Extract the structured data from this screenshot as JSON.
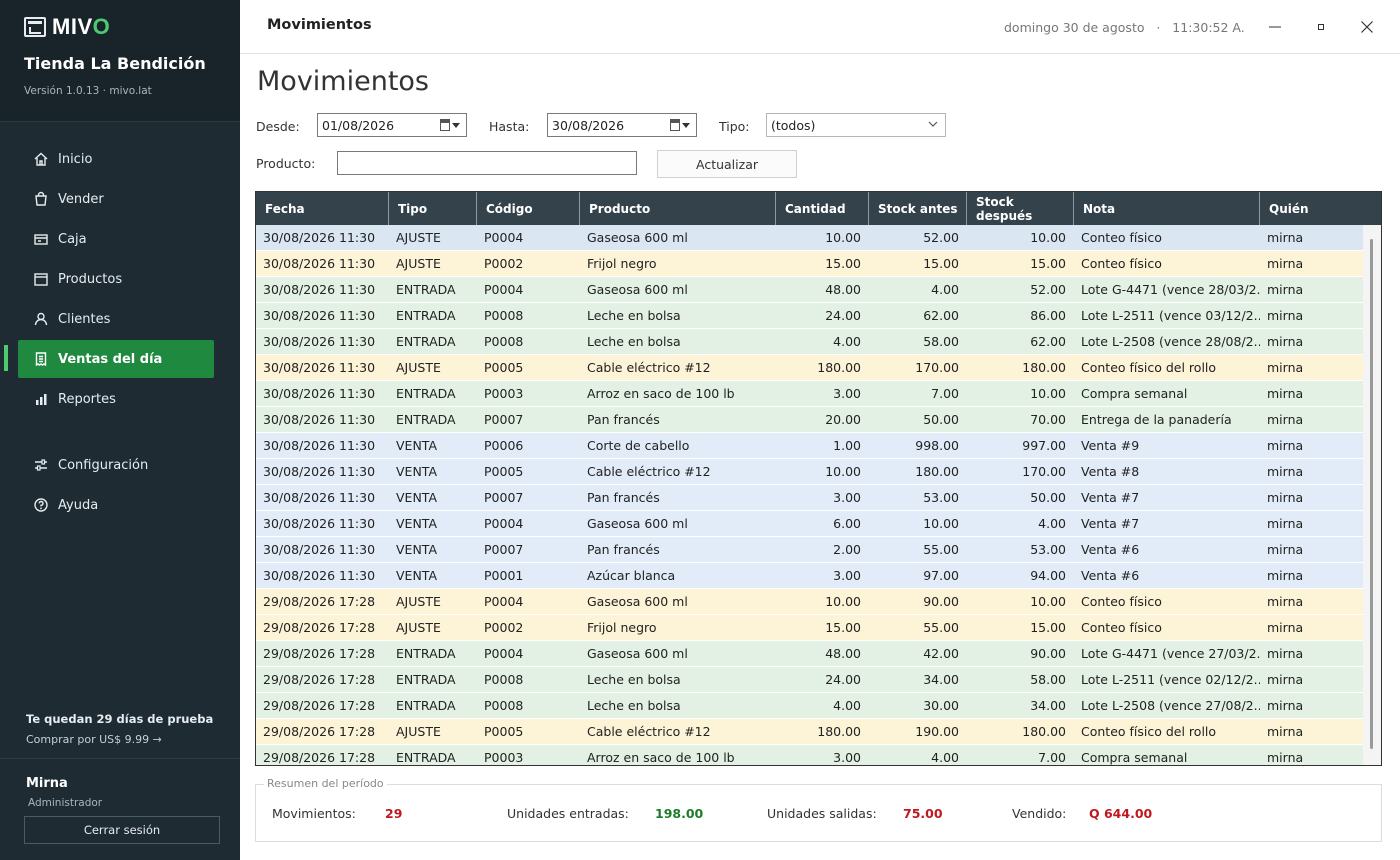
{
  "app": {
    "logo": "MIVO",
    "store_name": "Tienda La Bendición",
    "version": "Versión 1.0.13 · mivo.lat"
  },
  "sidebar": {
    "items": [
      {
        "label": "Inicio",
        "icon": "home-icon"
      },
      {
        "label": "Vender",
        "icon": "bag-icon"
      },
      {
        "label": "Caja",
        "icon": "cash-register-icon"
      },
      {
        "label": "Productos",
        "icon": "box-icon"
      },
      {
        "label": "Clientes",
        "icon": "user-icon"
      },
      {
        "label": "Ventas del día",
        "icon": "receipt-icon",
        "active": true
      },
      {
        "label": "Reportes",
        "icon": "bar-chart-icon"
      },
      {
        "label": "Configuración",
        "icon": "sliders-icon"
      },
      {
        "label": "Ayuda",
        "icon": "help-icon"
      }
    ],
    "trial_title": "Te quedan 29 días de prueba",
    "trial_link": "Comprar por US$ 9.99 →",
    "user_name": "Mirna",
    "user_role": "Administrador",
    "logout_label": "Cerrar sesión"
  },
  "titlebar": {
    "title": "Movimientos",
    "datetime": "domingo 30 de agosto   ·   11:30:52 A."
  },
  "page": {
    "title": "Movimientos"
  },
  "filters": {
    "desde_label": "Desde:",
    "desde_value": "01/08/2026",
    "hasta_label": "Hasta:",
    "hasta_value": "30/08/2026",
    "tipo_label": "Tipo:",
    "tipo_value": "(todos)",
    "producto_label": "Producto:",
    "producto_value": "",
    "refresh_label": "Actualizar"
  },
  "table": {
    "columns": [
      "Fecha",
      "Tipo",
      "Código",
      "Producto",
      "Cantidad",
      "Stock antes",
      "Stock después",
      "Nota",
      "Quién"
    ],
    "rows": [
      [
        "30/08/2026 11:30",
        "AJUSTE",
        "P0004",
        "Gaseosa 600 ml",
        "10.00",
        "52.00",
        "10.00",
        "Conteo físico",
        "mirna"
      ],
      [
        "30/08/2026 11:30",
        "AJUSTE",
        "P0002",
        "Frijol negro",
        "15.00",
        "15.00",
        "15.00",
        "Conteo físico",
        "mirna"
      ],
      [
        "30/08/2026 11:30",
        "ENTRADA",
        "P0004",
        "Gaseosa 600 ml",
        "48.00",
        "4.00",
        "52.00",
        "Lote G-4471 (vence 28/03/2...",
        "mirna"
      ],
      [
        "30/08/2026 11:30",
        "ENTRADA",
        "P0008",
        "Leche en bolsa",
        "24.00",
        "62.00",
        "86.00",
        "Lote L-2511 (vence 03/12/2...",
        "mirna"
      ],
      [
        "30/08/2026 11:30",
        "ENTRADA",
        "P0008",
        "Leche en bolsa",
        "4.00",
        "58.00",
        "62.00",
        "Lote L-2508 (vence 28/08/2...",
        "mirna"
      ],
      [
        "30/08/2026 11:30",
        "AJUSTE",
        "P0005",
        "Cable eléctrico #12",
        "180.00",
        "170.00",
        "180.00",
        "Conteo físico del rollo",
        "mirna"
      ],
      [
        "30/08/2026 11:30",
        "ENTRADA",
        "P0003",
        "Arroz en saco de 100 lb",
        "3.00",
        "7.00",
        "10.00",
        "Compra semanal",
        "mirna"
      ],
      [
        "30/08/2026 11:30",
        "ENTRADA",
        "P0007",
        "Pan francés",
        "20.00",
        "50.00",
        "70.00",
        "Entrega de la panadería",
        "mirna"
      ],
      [
        "30/08/2026 11:30",
        "VENTA",
        "P0006",
        "Corte de cabello",
        "1.00",
        "998.00",
        "997.00",
        "Venta #9",
        "mirna"
      ],
      [
        "30/08/2026 11:30",
        "VENTA",
        "P0005",
        "Cable eléctrico #12",
        "10.00",
        "180.00",
        "170.00",
        "Venta #8",
        "mirna"
      ],
      [
        "30/08/2026 11:30",
        "VENTA",
        "P0007",
        "Pan francés",
        "3.00",
        "53.00",
        "50.00",
        "Venta #7",
        "mirna"
      ],
      [
        "30/08/2026 11:30",
        "VENTA",
        "P0004",
        "Gaseosa 600 ml",
        "6.00",
        "10.00",
        "4.00",
        "Venta #7",
        "mirna"
      ],
      [
        "30/08/2026 11:30",
        "VENTA",
        "P0007",
        "Pan francés",
        "2.00",
        "55.00",
        "53.00",
        "Venta #6",
        "mirna"
      ],
      [
        "30/08/2026 11:30",
        "VENTA",
        "P0001",
        "Azúcar blanca",
        "3.00",
        "97.00",
        "94.00",
        "Venta #6",
        "mirna"
      ],
      [
        "29/08/2026 17:28",
        "AJUSTE",
        "P0004",
        "Gaseosa 600 ml",
        "10.00",
        "90.00",
        "10.00",
        "Conteo físico",
        "mirna"
      ],
      [
        "29/08/2026 17:28",
        "AJUSTE",
        "P0002",
        "Frijol negro",
        "15.00",
        "55.00",
        "15.00",
        "Conteo físico",
        "mirna"
      ],
      [
        "29/08/2026 17:28",
        "ENTRADA",
        "P0004",
        "Gaseosa 600 ml",
        "48.00",
        "42.00",
        "90.00",
        "Lote G-4471 (vence 27/03/2...",
        "mirna"
      ],
      [
        "29/08/2026 17:28",
        "ENTRADA",
        "P0008",
        "Leche en bolsa",
        "24.00",
        "34.00",
        "58.00",
        "Lote L-2511 (vence 02/12/2...",
        "mirna"
      ],
      [
        "29/08/2026 17:28",
        "ENTRADA",
        "P0008",
        "Leche en bolsa",
        "4.00",
        "30.00",
        "34.00",
        "Lote L-2508 (vence 27/08/2...",
        "mirna"
      ],
      [
        "29/08/2026 17:28",
        "AJUSTE",
        "P0005",
        "Cable eléctrico #12",
        "180.00",
        "190.00",
        "180.00",
        "Conteo físico del rollo",
        "mirna"
      ],
      [
        "29/08/2026 17:28",
        "ENTRADA",
        "P0003",
        "Arroz en saco de 100 lb",
        "3.00",
        "4.00",
        "7.00",
        "Compra semanal",
        "mirna"
      ]
    ]
  },
  "summary": {
    "legend": "Resumen del período",
    "movimientos_label": "Movimientos:",
    "movimientos_value": "29",
    "entradas_label": "Unidades entradas:",
    "entradas_value": "198.00",
    "salidas_label": "Unidades salidas:",
    "salidas_value": "75.00",
    "vendido_label": "Vendido:",
    "vendido_value": "Q 644.00"
  },
  "colors": {
    "sidebar_bg": "#1e2b33",
    "accent_green": "#1f8a3f",
    "header_bg": "#34434b",
    "row_ajuste": "#fdf3d6",
    "row_entrada": "#e3f1e4",
    "row_venta": "#e2ecf8"
  }
}
